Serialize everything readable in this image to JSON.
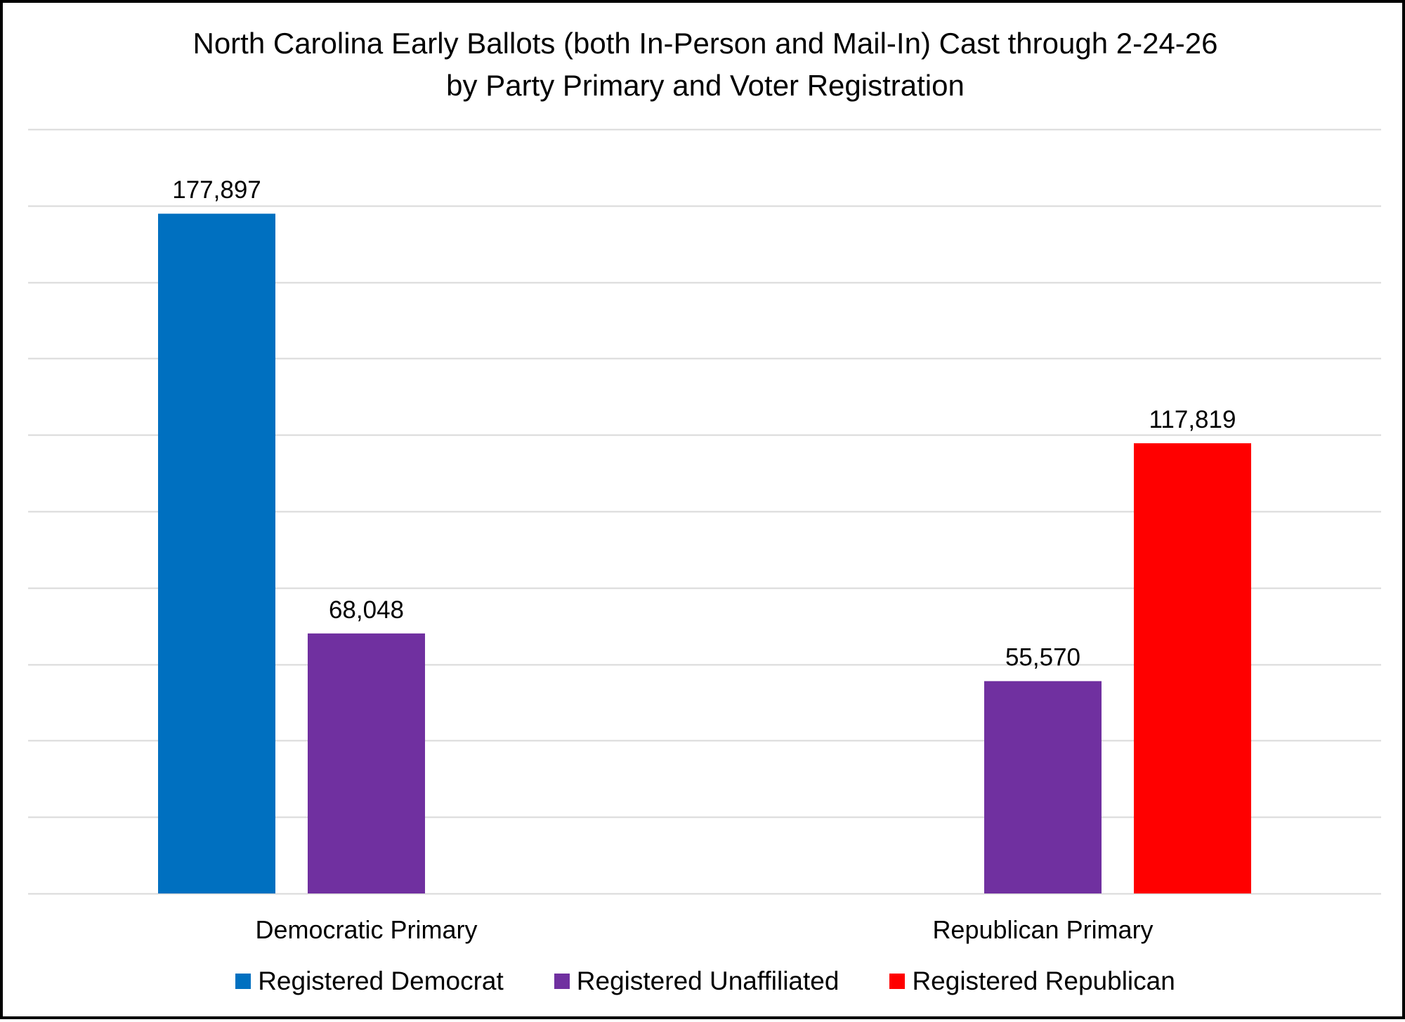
{
  "chart_data": {
    "type": "bar",
    "title": "North Carolina Early Ballots (both In-Person and Mail-In) Cast through 2-24-26",
    "subtitle": "by Party Primary and Voter Registration",
    "xlabel": "",
    "ylabel": "",
    "categories": [
      "Democratic Primary",
      "Republican Primary"
    ],
    "series": [
      {
        "name": "Registered Democrat",
        "color": "#0070C0",
        "values": [
          177897,
          null
        ],
        "labels": [
          "177,897",
          ""
        ]
      },
      {
        "name": "Registered Unaffiliated",
        "color": "#7030A0",
        "values": [
          68048,
          55570
        ],
        "labels": [
          "68,048",
          "55,570"
        ]
      },
      {
        "name": "Registered Republican",
        "color": "#FF0000",
        "values": [
          null,
          117819
        ],
        "labels": [
          "",
          "117,819"
        ]
      }
    ],
    "ylim": [
      0,
      200000
    ],
    "ytick_step": 20000,
    "ytick_labels_visible": false,
    "grid": true,
    "legend_position": "bottom"
  },
  "colors": {
    "gridline": "#D9D9D9",
    "axis": "#D9D9D9"
  }
}
